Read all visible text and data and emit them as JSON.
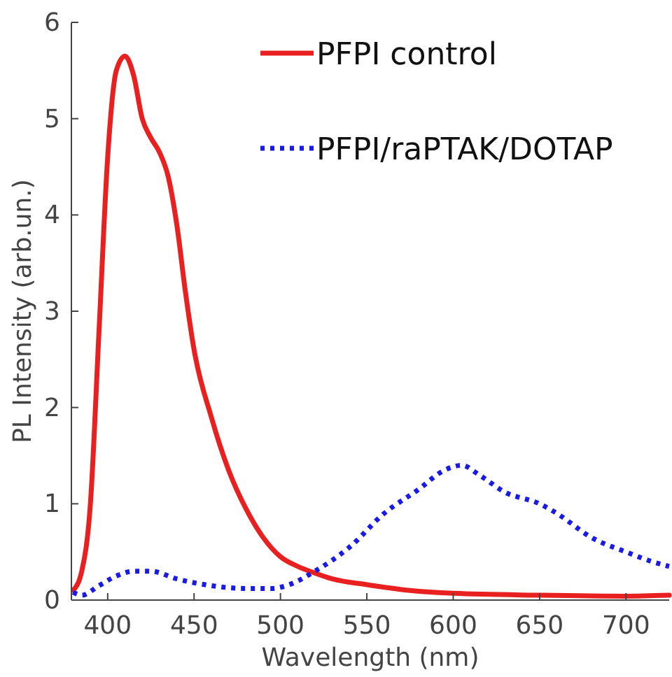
{
  "chart_data": {
    "type": "line",
    "xlabel": "Wavelength (nm)",
    "ylabel": "PL Intensity (arb.un.)",
    "xlim": [
      379,
      725
    ],
    "ylim": [
      0,
      6
    ],
    "xticks": [
      400,
      450,
      500,
      550,
      600,
      650,
      700
    ],
    "yticks": [
      0,
      1,
      2,
      3,
      4,
      5,
      6
    ],
    "legend": "top right",
    "grid": false,
    "series": [
      {
        "name": "PFPI control",
        "color": "#e8201f",
        "line_style": "solid",
        "x": [
          380,
          385,
          390,
          395,
          400,
          405,
          410,
          415,
          420,
          425,
          430,
          435,
          440,
          445,
          450,
          460,
          470,
          480,
          490,
          500,
          510,
          520,
          530,
          550,
          575,
          600,
          650,
          700,
          725
        ],
        "values": [
          0.1,
          0.3,
          1.0,
          2.8,
          4.6,
          5.5,
          5.65,
          5.45,
          5.0,
          4.8,
          4.65,
          4.4,
          3.9,
          3.2,
          2.6,
          1.9,
          1.35,
          0.95,
          0.65,
          0.45,
          0.35,
          0.28,
          0.22,
          0.16,
          0.1,
          0.07,
          0.05,
          0.04,
          0.05
        ]
      },
      {
        "name": "PFPI/raPTAK/DOTAP",
        "color": "#1a1ae6",
        "line_style": "dotted",
        "x": [
          380,
          385,
          395,
          405,
          415,
          425,
          440,
          460,
          480,
          495,
          505,
          520,
          540,
          560,
          580,
          595,
          605,
          615,
          630,
          650,
          660,
          680,
          700,
          715,
          725
        ],
        "values": [
          0.08,
          0.05,
          0.15,
          0.25,
          0.3,
          0.3,
          0.22,
          0.15,
          0.12,
          0.12,
          0.16,
          0.3,
          0.55,
          0.9,
          1.15,
          1.35,
          1.4,
          1.3,
          1.12,
          1.0,
          0.9,
          0.65,
          0.5,
          0.4,
          0.35
        ]
      }
    ]
  }
}
